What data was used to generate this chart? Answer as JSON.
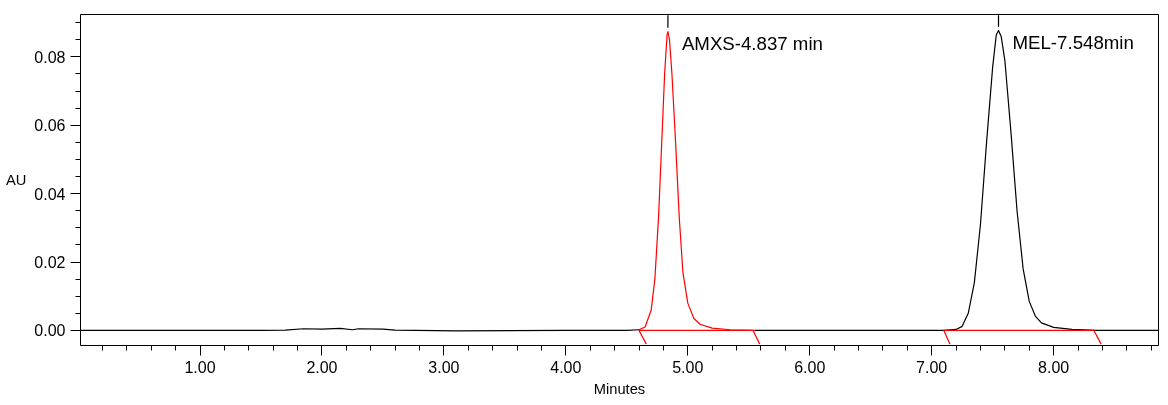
{
  "chart_data": {
    "type": "line",
    "xlabel": "Minutes",
    "ylabel": "AU",
    "xlim": [
      0.02,
      8.86
    ],
    "ylim": [
      -0.0044,
      0.0924
    ],
    "xticks": [
      {
        "value": 1,
        "label": "1.00"
      },
      {
        "value": 2,
        "label": "2.00"
      },
      {
        "value": 3,
        "label": "3.00"
      },
      {
        "value": 4,
        "label": "4.00"
      },
      {
        "value": 5,
        "label": "5.00"
      },
      {
        "value": 6,
        "label": "6.00"
      },
      {
        "value": 7,
        "label": "7.00"
      },
      {
        "value": 8,
        "label": "8.00"
      }
    ],
    "yticks": [
      {
        "value": 0,
        "label": "0.00"
      },
      {
        "value": 0.02,
        "label": "0.02"
      },
      {
        "value": 0.04,
        "label": "0.04"
      },
      {
        "value": 0.06,
        "label": "0.06"
      },
      {
        "value": 0.08,
        "label": "0.08"
      }
    ],
    "grid": false,
    "marker": "none",
    "line_style": "solid",
    "series": [
      {
        "color": "#000000",
        "x": [
          0.02,
          1.5,
          1.7,
          1.85,
          2.0,
          2.15,
          2.25,
          2.3,
          2.5,
          2.6,
          3.1,
          4.0,
          4.5,
          4.6,
          4.61,
          5.55,
          7.1,
          7.2,
          7.25,
          7.3,
          7.35,
          7.4,
          7.45,
          7.5,
          7.53,
          7.548,
          7.57,
          7.6,
          7.65,
          7.7,
          7.75,
          7.8,
          7.85,
          7.9,
          8.0,
          8.15,
          8.35,
          8.86
        ],
        "values": [
          0,
          0,
          0.0001,
          0.0005,
          0.0004,
          0.0006,
          0.0002,
          0.0005,
          0.0004,
          0.0001,
          -0.0001,
          0,
          0,
          0.0002,
          null,
          0,
          0,
          0.0003,
          0.0012,
          0.005,
          0.014,
          0.031,
          0.055,
          0.077,
          0.0865,
          0.0877,
          0.086,
          0.079,
          0.058,
          0.035,
          0.018,
          0.0085,
          0.0042,
          0.0022,
          0.0009,
          0.0003,
          0,
          0
        ]
      },
      {
        "color": "#ff0000",
        "x": [
          4.6,
          4.65,
          4.7,
          4.73,
          4.76,
          4.79,
          4.81,
          4.83,
          4.837,
          4.85,
          4.87,
          4.9,
          4.93,
          4.96,
          5.0,
          5.05,
          5.1,
          5.2,
          5.35,
          5.55
        ],
        "values": [
          0.0002,
          0.001,
          0.006,
          0.015,
          0.033,
          0.058,
          0.075,
          0.0865,
          0.0874,
          0.085,
          0.075,
          0.055,
          0.033,
          0.017,
          0.008,
          0.0035,
          0.0018,
          0.0007,
          0.0002,
          0
        ]
      },
      {
        "color": "#ff0000",
        "x": [
          4.66,
          4.6,
          5.535,
          5.59
        ],
        "values": [
          -0.004,
          0,
          0,
          -0.004
        ]
      },
      {
        "color": "#ff0000",
        "x": [
          7.15,
          7.1,
          8.33,
          8.39
        ],
        "values": [
          -0.004,
          0,
          0,
          -0.004
        ]
      },
      {
        "color": "#000000",
        "x": [
          4.837,
          4.837
        ],
        "values": [
          0.0885,
          0.0922
        ]
      },
      {
        "color": "#000000",
        "x": [
          7.548,
          7.548
        ],
        "values": [
          0.0888,
          0.0922
        ]
      }
    ],
    "annotations": [
      {
        "text": "AMXS-4.837 min",
        "x": 4.837,
        "y": 0.0874
      },
      {
        "text": "MEL-7.548min",
        "x": 7.548,
        "y": 0.0877
      }
    ]
  }
}
